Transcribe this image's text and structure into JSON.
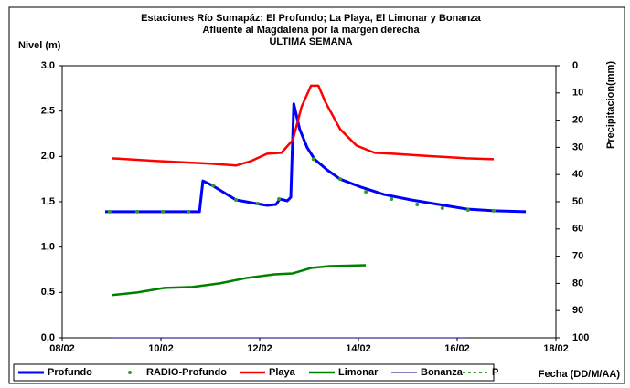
{
  "chart_data": {
    "type": "line",
    "title": [
      "Estaciones Río Sumapáz: El Profundo; La Playa, El Limonar y Bonanza",
      "Afluente al Magdalena por la margen derecha",
      "ULTIMA SEMANA"
    ],
    "ylabel": "Nivel (m)",
    "y2label": "Precipitacion(mm)",
    "xlabel": "Fecha (DD/M/AA)",
    "xlim": [
      8,
      18
    ],
    "xticks": [
      {
        "value": 8,
        "label": "08/02"
      },
      {
        "value": 10,
        "label": "10/02"
      },
      {
        "value": 12,
        "label": "12/02"
      },
      {
        "value": 14,
        "label": "14/02"
      },
      {
        "value": 16,
        "label": "16/02"
      },
      {
        "value": 18,
        "label": "18/02"
      }
    ],
    "ylim": [
      0,
      3
    ],
    "yticks": [
      {
        "value": 0,
        "label": "0,0"
      },
      {
        "value": 0.5,
        "label": "0,5"
      },
      {
        "value": 1,
        "label": "1,0"
      },
      {
        "value": 1.5,
        "label": "1,5"
      },
      {
        "value": 2,
        "label": "2,0"
      },
      {
        "value": 2.5,
        "label": "2,5"
      },
      {
        "value": 3,
        "label": "3,0"
      }
    ],
    "y2lim": [
      100,
      0
    ],
    "y2ticks": [
      0,
      10,
      20,
      30,
      40,
      50,
      60,
      70,
      80,
      90,
      100
    ],
    "series": [
      {
        "name": "Profundo",
        "color": "#0000ff",
        "style": "line",
        "width": 3,
        "x": [
          8.87,
          10.78,
          10.85,
          11.04,
          11.52,
          11.93,
          12.15,
          12.33,
          12.41,
          12.56,
          12.63,
          12.69,
          12.81,
          12.96,
          13.11,
          13.37,
          13.63,
          14.06,
          14.52,
          15.07,
          15.63,
          16.19,
          16.74,
          17.39
        ],
        "values": [
          1.39,
          1.39,
          1.73,
          1.68,
          1.52,
          1.48,
          1.46,
          1.47,
          1.53,
          1.51,
          1.55,
          2.58,
          2.3,
          2.1,
          1.97,
          1.85,
          1.75,
          1.66,
          1.58,
          1.52,
          1.47,
          1.42,
          1.4,
          1.39
        ]
      },
      {
        "name": "RADIO-Profundo",
        "color": "#339933",
        "style": "dots",
        "width": 2,
        "x": [
          8.96,
          9.52,
          10.04,
          10.56,
          11.06,
          11.52,
          11.96,
          12.39,
          13.09,
          13.63,
          14.15,
          14.67,
          15.19,
          15.7,
          16.22,
          16.74
        ],
        "values": [
          1.39,
          1.39,
          1.39,
          1.39,
          1.68,
          1.52,
          1.48,
          1.53,
          1.97,
          1.75,
          1.61,
          1.53,
          1.47,
          1.43,
          1.41,
          1.4
        ]
      },
      {
        "name": "Playa",
        "color": "#ff0000",
        "style": "line",
        "width": 2.5,
        "x": [
          9.0,
          9.89,
          11.0,
          11.52,
          11.83,
          12.15,
          12.44,
          12.67,
          12.85,
          13.04,
          13.19,
          13.33,
          13.63,
          13.96,
          14.33,
          14.7,
          15.26,
          16.19,
          16.74
        ],
        "values": [
          1.98,
          1.95,
          1.92,
          1.9,
          1.95,
          2.03,
          2.04,
          2.18,
          2.55,
          2.78,
          2.78,
          2.6,
          2.3,
          2.12,
          2.04,
          2.03,
          2.01,
          1.98,
          1.97
        ]
      },
      {
        "name": "Limonar",
        "color": "#008000",
        "style": "line",
        "width": 2.5,
        "x": [
          9.0,
          9.52,
          10.07,
          10.63,
          11.19,
          11.74,
          12.3,
          12.67,
          13.04,
          13.41,
          14.15
        ],
        "values": [
          0.47,
          0.5,
          0.55,
          0.56,
          0.6,
          0.66,
          0.7,
          0.71,
          0.77,
          0.79,
          0.8
        ]
      },
      {
        "name": "Bonanza",
        "color": "#000080",
        "style": "line",
        "width": 1,
        "x": [
          9.0,
          16.19
        ],
        "values": [
          0,
          0
        ]
      },
      {
        "name": "P",
        "color": "#339933",
        "style": "dash",
        "width": 2,
        "axis": "y2",
        "x": [],
        "values": []
      }
    ]
  }
}
